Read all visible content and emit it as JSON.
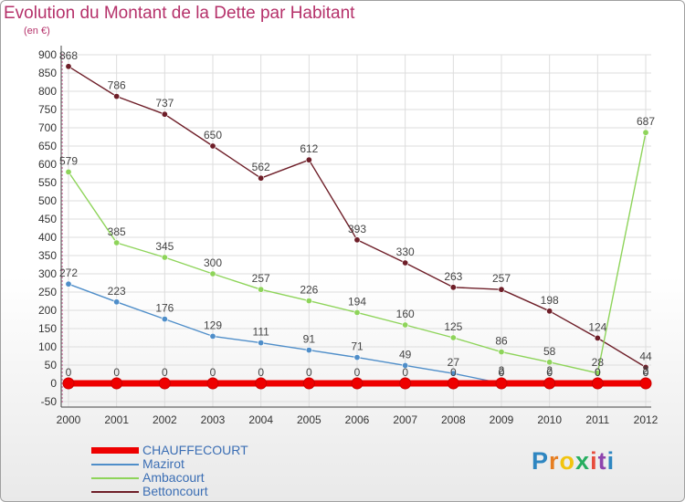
{
  "title": "Evolution du Montant de la Dette par Habitant",
  "unit_label": "(en €)",
  "logo_text": "Proxiti",
  "colors": {
    "title": "#b5316a",
    "axis": "#444444",
    "grid": "#dddddd",
    "legend_text": "#3b6eb4"
  },
  "chart_data": {
    "type": "line",
    "title": "Evolution du Montant de la Dette par Habitant",
    "ylabel": "(en €)",
    "xlabel": "",
    "ylim": [
      -50,
      900
    ],
    "yticks": [
      -50,
      0,
      50,
      100,
      150,
      200,
      250,
      300,
      350,
      400,
      450,
      500,
      550,
      600,
      650,
      700,
      750,
      800,
      850,
      900
    ],
    "grid": true,
    "legend_position": "bottom-left",
    "x": [
      "2000",
      "2001",
      "2002",
      "2003",
      "2004",
      "2005",
      "2006",
      "2007",
      "2008",
      "2009",
      "2010",
      "2011",
      "2012"
    ],
    "series": [
      {
        "name": "CHAUFFECOURT",
        "color": "#ee0000",
        "values": [
          0,
          0,
          0,
          0,
          0,
          0,
          0,
          0,
          0,
          0,
          0,
          0,
          0
        ],
        "labels": [
          "0",
          "0",
          "0",
          "0",
          "0",
          "0",
          "0",
          "0",
          "0",
          "0",
          "0",
          "0",
          "0"
        ]
      },
      {
        "name": "Mazirot",
        "color": "#4f8ec9",
        "values": [
          272,
          223,
          176,
          129,
          111,
          91,
          71,
          49,
          27,
          0,
          0,
          0,
          0
        ],
        "labels": [
          "272",
          "223",
          "176",
          "129",
          "111",
          "91",
          "71",
          "49",
          "27",
          "0",
          "0",
          "0",
          "0"
        ]
      },
      {
        "name": "Ambacourt",
        "color": "#8ed45a",
        "values": [
          579,
          385,
          345,
          300,
          257,
          226,
          194,
          160,
          125,
          86,
          58,
          28,
          687
        ],
        "labels": [
          "579",
          "385",
          "345",
          "300",
          "257",
          "226",
          "194",
          "160",
          "125",
          "86",
          "58",
          "28",
          "687"
        ]
      },
      {
        "name": "Bettoncourt",
        "color": "#6e1e28",
        "values": [
          868,
          786,
          737,
          650,
          562,
          612,
          393,
          330,
          263,
          257,
          198,
          124,
          44
        ],
        "labels": [
          "868",
          "786",
          "737",
          "650",
          "562",
          "612",
          "393",
          "330",
          "263",
          "257",
          "198",
          "124",
          "44"
        ]
      }
    ],
    "extra_labels": [
      {
        "x": "2009",
        "y": 0,
        "text": "2"
      },
      {
        "x": "2010",
        "y": 0,
        "text": "2"
      },
      {
        "x": "2012",
        "y": 0,
        "text": "2"
      }
    ]
  }
}
